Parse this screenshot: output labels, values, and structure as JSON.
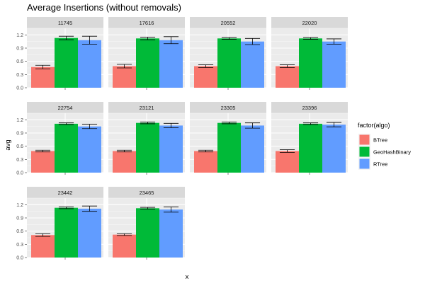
{
  "chart_data": {
    "type": "bar",
    "title": "Average Insertions (without removals)",
    "xlabel": "x",
    "ylabel": "avg",
    "ylim": [
      0,
      1.35
    ],
    "y_ticks": [
      "0.0",
      "0.3",
      "0.6",
      "0.9",
      "1.2"
    ],
    "x_tick_label": "",
    "legend": {
      "title": "factor(algo)",
      "position": "right",
      "entries": [
        "BTree",
        "GeoHashBinary",
        "RTree"
      ]
    },
    "series_colors": {
      "BTree": "#F8766D",
      "GeoHashBinary": "#00BA38",
      "RTree": "#619CFF"
    },
    "panel_background": "#EBEBEB",
    "strip_background": "#D9D9D9",
    "grid": true,
    "facets": [
      {
        "label": "11745",
        "values": {
          "BTree": 0.47,
          "GeoHashBinary": 1.13,
          "RTree": 1.08
        },
        "errors": {
          "BTree": 0.04,
          "GeoHashBinary": 0.04,
          "RTree": 0.09
        }
      },
      {
        "label": "17616",
        "values": {
          "BTree": 0.49,
          "GeoHashBinary": 1.12,
          "RTree": 1.08
        },
        "errors": {
          "BTree": 0.04,
          "GeoHashBinary": 0.03,
          "RTree": 0.08
        }
      },
      {
        "label": "20552",
        "values": {
          "BTree": 0.49,
          "GeoHashBinary": 1.12,
          "RTree": 1.05
        },
        "errors": {
          "BTree": 0.03,
          "GeoHashBinary": 0.02,
          "RTree": 0.07
        }
      },
      {
        "label": "22020",
        "values": {
          "BTree": 0.49,
          "GeoHashBinary": 1.12,
          "RTree": 1.05
        },
        "errors": {
          "BTree": 0.03,
          "GeoHashBinary": 0.02,
          "RTree": 0.06
        }
      },
      {
        "label": "22754",
        "values": {
          "BTree": 0.49,
          "GeoHashBinary": 1.11,
          "RTree": 1.05
        },
        "errors": {
          "BTree": 0.02,
          "GeoHashBinary": 0.02,
          "RTree": 0.05
        }
      },
      {
        "label": "23121",
        "values": {
          "BTree": 0.49,
          "GeoHashBinary": 1.13,
          "RTree": 1.07
        },
        "errors": {
          "BTree": 0.02,
          "GeoHashBinary": 0.02,
          "RTree": 0.05
        }
      },
      {
        "label": "23305",
        "values": {
          "BTree": 0.49,
          "GeoHashBinary": 1.13,
          "RTree": 1.07
        },
        "errors": {
          "BTree": 0.02,
          "GeoHashBinary": 0.02,
          "RTree": 0.06
        }
      },
      {
        "label": "23396",
        "values": {
          "BTree": 0.49,
          "GeoHashBinary": 1.11,
          "RTree": 1.09
        },
        "errors": {
          "BTree": 0.03,
          "GeoHashBinary": 0.02,
          "RTree": 0.05
        }
      },
      {
        "label": "23442",
        "values": {
          "BTree": 0.51,
          "GeoHashBinary": 1.13,
          "RTree": 1.11
        },
        "errors": {
          "BTree": 0.03,
          "GeoHashBinary": 0.02,
          "RTree": 0.06
        }
      },
      {
        "label": "23465",
        "values": {
          "BTree": 0.52,
          "GeoHashBinary": 1.12,
          "RTree": 1.09
        },
        "errors": {
          "BTree": 0.02,
          "GeoHashBinary": 0.02,
          "RTree": 0.06
        }
      }
    ]
  }
}
